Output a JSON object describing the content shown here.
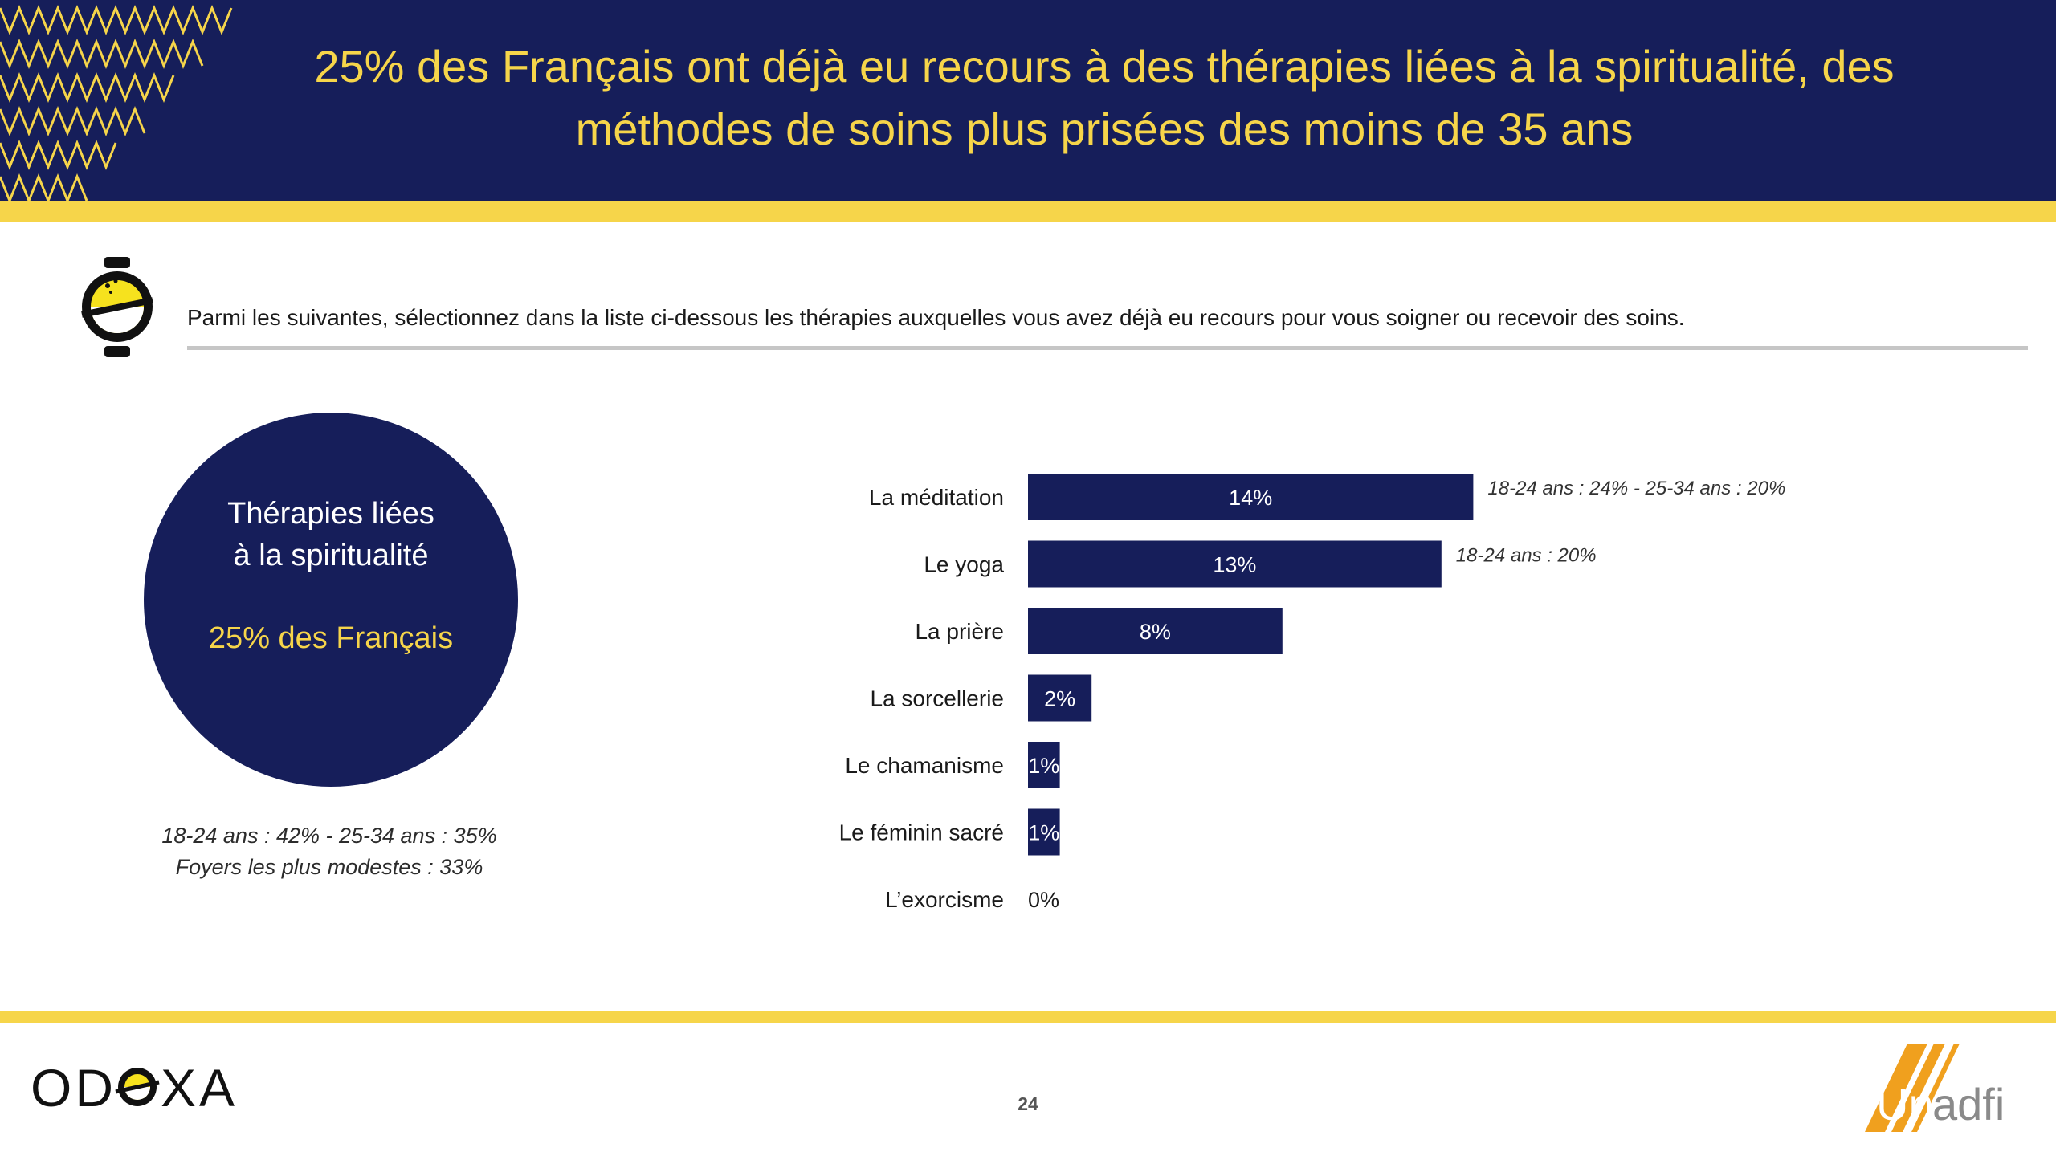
{
  "header": {
    "title_line1": "25% des Français ont déjà eu recours à des thérapies liées à la spiritualité, des",
    "title_line2": "méthodes de soins plus prisées des moins de 35 ans"
  },
  "question": "Parmi les suivantes, sélectionnez dans la liste ci-dessous les thérapies auxquelles vous avez déjà eu recours pour vous soigner ou recevoir des soins.",
  "summary": {
    "title_line1": "Thérapies liées",
    "title_line2": "à la spiritualité",
    "value_text": "25% des Français",
    "note_line1": "18-24 ans : 42% - 25-34 ans : 35%",
    "note_line2": "Foyers les plus modestes : 33%"
  },
  "chart_data": {
    "type": "bar",
    "orientation": "horizontal",
    "categories": [
      "La méditation",
      "Le yoga",
      "La prière",
      "La sorcellerie",
      "Le chamanisme",
      "Le féminin sacré",
      "L’exorcisme"
    ],
    "values": [
      14,
      13,
      8,
      2,
      1,
      1,
      0
    ],
    "value_labels": [
      "14%",
      "13%",
      "8%",
      "2%",
      "1%",
      "1%",
      "0%"
    ],
    "annotations": [
      "18-24 ans : 24% - 25-34 ans : 20%",
      "18-24 ans : 20%",
      "",
      "",
      "",
      "",
      ""
    ],
    "unit": "%",
    "xlim": [
      0,
      25
    ],
    "grid": false,
    "legend": "none",
    "bar_color": "#161e5a"
  },
  "footer": {
    "page_number": "24",
    "brand_left": "ODOXA",
    "brand_right_prefix": "Un",
    "brand_right_suffix": "adfi"
  },
  "colors": {
    "navy": "#161e5a",
    "yellow": "#f6d54a",
    "orange": "#f0a01e"
  }
}
